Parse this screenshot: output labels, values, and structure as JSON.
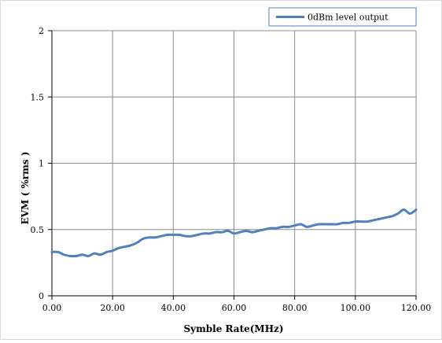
{
  "chart_data": {
    "type": "line",
    "title": "",
    "xlabel": "Symble Rate(MHz)",
    "ylabel": "EVM ( %rms )",
    "xlim": [
      0,
      120
    ],
    "ylim": [
      0,
      2
    ],
    "xticks": [
      0,
      20,
      40,
      60,
      80,
      100,
      120
    ],
    "yticks": [
      0,
      0.5,
      1,
      1.5,
      2
    ],
    "xtick_labels": [
      "0.00",
      "20.00",
      "40.00",
      "60.00",
      "80.00",
      "100.00",
      "120.00"
    ],
    "ytick_labels": [
      "0",
      "0.5",
      "1",
      "1.5",
      "2"
    ],
    "grid": true,
    "legend_position": "top-right",
    "series": [
      {
        "name": "0dBm level output",
        "color": "#4f81bd",
        "x": [
          0,
          2,
          4,
          6,
          8,
          10,
          12,
          14,
          16,
          18,
          20,
          22,
          24,
          26,
          28,
          30,
          32,
          34,
          36,
          38,
          40,
          42,
          44,
          46,
          48,
          50,
          52,
          54,
          56,
          58,
          60,
          62,
          64,
          66,
          68,
          70,
          72,
          74,
          76,
          78,
          80,
          82,
          84,
          86,
          88,
          90,
          92,
          94,
          96,
          98,
          100,
          102,
          104,
          106,
          108,
          110,
          112,
          114,
          116,
          118,
          120
        ],
        "y": [
          0.33,
          0.33,
          0.31,
          0.3,
          0.3,
          0.31,
          0.3,
          0.32,
          0.31,
          0.33,
          0.34,
          0.36,
          0.37,
          0.38,
          0.4,
          0.43,
          0.44,
          0.44,
          0.45,
          0.46,
          0.46,
          0.46,
          0.45,
          0.45,
          0.46,
          0.47,
          0.47,
          0.48,
          0.48,
          0.49,
          0.47,
          0.48,
          0.49,
          0.48,
          0.49,
          0.5,
          0.51,
          0.51,
          0.52,
          0.52,
          0.53,
          0.54,
          0.52,
          0.53,
          0.54,
          0.54,
          0.54,
          0.54,
          0.55,
          0.55,
          0.56,
          0.56,
          0.56,
          0.57,
          0.58,
          0.59,
          0.6,
          0.62,
          0.65,
          0.62,
          0.65
        ]
      }
    ]
  }
}
